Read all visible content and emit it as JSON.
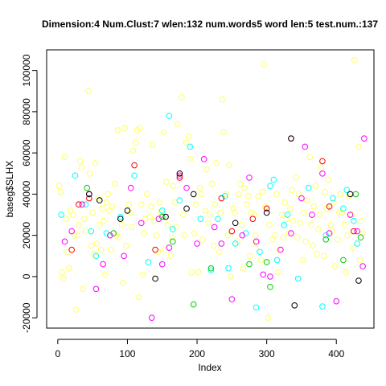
{
  "chart_data": {
    "type": "scatter",
    "title": "Dimension:4  Num.Clust:7  wlen:132  num.words5  word len:5  test.num.:137",
    "x_label": "Index",
    "y_label": "baseg$SLHX",
    "xlim": [
      -16,
      454
    ],
    "ylim": [
      -25000,
      110000
    ],
    "xticks": [
      0,
      100,
      200,
      300,
      400
    ],
    "yticks": [
      -20000,
      0,
      20000,
      40000,
      60000,
      80000,
      100000
    ],
    "grid": false,
    "series": [
      {
        "color": "#ffff66",
        "x": [
          2,
          4,
          6,
          8,
          10,
          12,
          14,
          16,
          18,
          22,
          24,
          26,
          28,
          30,
          32,
          34,
          36,
          38,
          40,
          44,
          46,
          48,
          50,
          52,
          54,
          56,
          58,
          60,
          62,
          64,
          66,
          68,
          70,
          72,
          74,
          76,
          78,
          82,
          84,
          86,
          88,
          92,
          94,
          96,
          98,
          102,
          104,
          106,
          108,
          112,
          114,
          116,
          118,
          120,
          122,
          124,
          126,
          128,
          132,
          134,
          136,
          138,
          142,
          144,
          146,
          148,
          152,
          154,
          156,
          158,
          162,
          164,
          166,
          168,
          170,
          172,
          178,
          180,
          182,
          184,
          188,
          190,
          192,
          196,
          198,
          202,
          204,
          206,
          208,
          212,
          214,
          216,
          218,
          222,
          224,
          226,
          228,
          232,
          234,
          236,
          238,
          242,
          244,
          246,
          248,
          252,
          254,
          258,
          260,
          262,
          264,
          266,
          268,
          272,
          274,
          276,
          278,
          282,
          284,
          286,
          288,
          292,
          294,
          296,
          298,
          302,
          304,
          308,
          312,
          314,
          316,
          318,
          322,
          324,
          326,
          328,
          332,
          334,
          336,
          338,
          342,
          344,
          346,
          348,
          352,
          354,
          356,
          358,
          362,
          364,
          366,
          368,
          370,
          372,
          374,
          376,
          378,
          382,
          384,
          386,
          388,
          392,
          394,
          396,
          398,
          402,
          404,
          406,
          408,
          412,
          414,
          416,
          418,
          422,
          424,
          426,
          432,
          434,
          436,
          438
        ],
        "values": [
          44000,
          41000,
          2000,
          -1000,
          58000,
          28000,
          12000,
          4000,
          32000,
          30000,
          20000,
          -16000,
          20000,
          25000,
          56000,
          53000,
          -6000,
          28000,
          22000,
          90000,
          50000,
          15000,
          31000,
          11000,
          55000,
          16000,
          38000,
          25000,
          13000,
          33000,
          27000,
          1000,
          36000,
          40000,
          32000,
          13000,
          34000,
          45000,
          20000,
          71000,
          19000,
          25000,
          -3000,
          72000,
          15000,
          35000,
          31000,
          24000,
          61000,
          65000,
          71000,
          -10000,
          72000,
          35000,
          1000,
          21000,
          28000,
          40000,
          29000,
          34000,
          64000,
          27000,
          20000,
          12000,
          36000,
          31000,
          70000,
          13000,
          46000,
          25000,
          10000,
          19000,
          44000,
          36000,
          24000,
          74000,
          87000,
          30000,
          20000,
          65000,
          68000,
          57000,
          2000,
          21000,
          35000,
          2000,
          43000,
          40000,
          18000,
          32000,
          52000,
          26000,
          30000,
          45000,
          15000,
          35000,
          55000,
          12000,
          31000,
          86000,
          70000,
          40000,
          20000,
          54000,
          0,
          33000,
          31000,
          17000,
          40000,
          45000,
          25000,
          4000,
          43000,
          35000,
          39000,
          10000,
          31000,
          30000,
          20000,
          16000,
          39000,
          8000,
          41000,
          103000,
          34000,
          -20000,
          25000,
          18000,
          20000,
          40000,
          2000,
          13000,
          30000,
          19000,
          36000,
          28000,
          21000,
          33000,
          42000,
          27000,
          48000,
          19000,
          40000,
          26000,
          8000,
          31000,
          17000,
          37000,
          58000,
          25000,
          15000,
          34000,
          44000,
          11000,
          23000,
          30000,
          53000,
          10000,
          41000,
          33000,
          47000,
          25000,
          22000,
          36000,
          5000,
          18000,
          31000,
          40000,
          31000,
          25000,
          2000,
          20000,
          39000,
          30000,
          14000,
          105000,
          63000,
          8000,
          27000,
          21000
        ]
      },
      {
        "color": "#00ffff",
        "x": [
          5,
          25,
          40,
          48,
          55,
          70,
          90,
          110,
          130,
          150,
          160,
          165,
          175,
          190,
          205,
          220,
          230,
          240,
          245,
          255,
          270,
          285,
          290,
          305,
          310,
          315,
          325,
          330,
          345,
          360,
          380,
          385,
          395,
          410,
          415,
          425,
          430
        ],
        "values": [
          30000,
          49000,
          35000,
          22000,
          10000,
          21000,
          29000,
          49000,
          7000,
          32000,
          78000,
          23000,
          37000,
          63000,
          28000,
          3000,
          28000,
          39000,
          4000,
          16000,
          21000,
          -15000,
          12000,
          44000,
          47000,
          8000,
          25000,
          30000,
          -1000,
          43000,
          -14500,
          20000,
          38000,
          33000,
          42000,
          27000,
          16000
        ]
      },
      {
        "color": "#ff00ff",
        "x": [
          10,
          20,
          35,
          45,
          55,
          65,
          75,
          95,
          105,
          120,
          135,
          145,
          150,
          160,
          175,
          185,
          200,
          210,
          225,
          235,
          250,
          265,
          275,
          285,
          295,
          305,
          320,
          335,
          350,
          355,
          365,
          380,
          390,
          400,
          420,
          430,
          440,
          438
        ],
        "values": [
          17000,
          22000,
          35000,
          40000,
          -6000,
          6000,
          20000,
          10000,
          43000,
          26000,
          -20000,
          28000,
          6000,
          14000,
          49000,
          43000,
          16000,
          57000,
          24000,
          16000,
          -11000,
          20000,
          48000,
          17000,
          1000,
          0,
          13000,
          21000,
          38000,
          63000,
          30000,
          50000,
          21000,
          -12000,
          30000,
          22000,
          67000,
          5000
        ]
      },
      {
        "color": "#00cd00",
        "x": [
          42,
          80,
          150,
          165,
          195,
          220,
          275,
          300,
          305,
          385,
          410,
          428,
          435
        ],
        "values": [
          43000,
          21000,
          29000,
          17000,
          -13500,
          4000,
          6000,
          7000,
          -5000,
          18000,
          8000,
          40000,
          19000
        ]
      },
      {
        "color": "#ff0000",
        "x": [
          20,
          30,
          45,
          110,
          140,
          175,
          235,
          250,
          280,
          300,
          335,
          380,
          390,
          425
        ],
        "values": [
          13000,
          35000,
          38000,
          54000,
          13000,
          48000,
          38000,
          22000,
          28000,
          33000,
          67000,
          56000,
          34000,
          22000
        ]
      },
      {
        "color": "#000000",
        "x": [
          45,
          60,
          90,
          100,
          140,
          155,
          175,
          185,
          195,
          255,
          300,
          335,
          340,
          420,
          432
        ],
        "values": [
          40000,
          37000,
          28000,
          32000,
          -1000,
          29000,
          50000,
          33000,
          40000,
          26000,
          31000,
          67000,
          -14000,
          40000,
          -2000
        ]
      }
    ]
  }
}
